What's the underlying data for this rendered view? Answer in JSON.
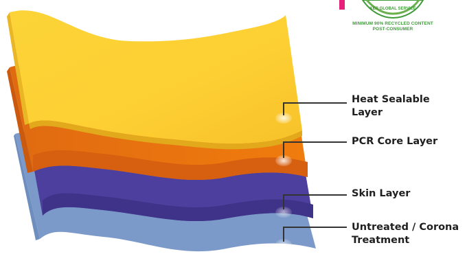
{
  "layers": [
    {
      "label": "Heat Sealable Layer",
      "color": "#fdcd34"
    },
    {
      "label": "PCR Core Layer",
      "color": "#ee7a0f"
    },
    {
      "label": "Skin Layer",
      "color": "#4d3f9e"
    },
    {
      "label": "Untreated / Corona Treatment",
      "color": "#7c9ac9"
    }
  ],
  "label_lines": {
    "heat_sealable_1": "Heat Sealable",
    "heat_sealable_2": "Layer",
    "pcr_core": "PCR Core Layer",
    "skin": "Skin Layer",
    "untreated_1": "Untreated / Corona",
    "untreated_2": "Treatment"
  },
  "badge": {
    "arc_text": "KER GLOBAL SERVICE",
    "line1": "MINIMUM 90% RECYCLED CONTENT",
    "line2": "POST-CONSUMER",
    "color": "#3f9a3a"
  },
  "accent_color": "#e6217c"
}
